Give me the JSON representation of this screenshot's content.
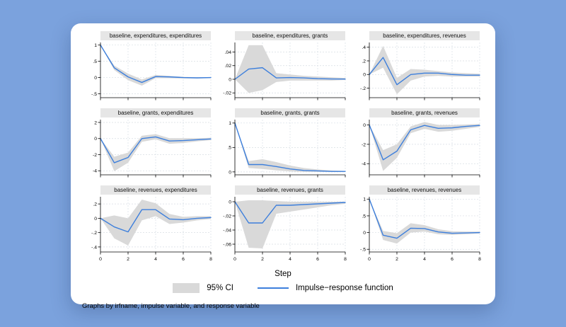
{
  "colors": {
    "page_bg": "#7ba2dd",
    "card_bg": "#ffffff",
    "line": "#3d7fdc",
    "ci": "#d9d9d9",
    "grid": "#d7dee4",
    "title_bg": "#e6e6e6",
    "axis": "#000000"
  },
  "figure": {
    "xlabel": "Step",
    "note": "Graphs by irfname, impulse variable, and response variable",
    "legend": {
      "ci_label": "95% CI",
      "irf_label": "Impulse−response function"
    }
  },
  "chart_data": {
    "type": "line",
    "layout": "3x3 small multiples, Stata IRF graph, CI band + line per panel",
    "x": [
      0,
      1,
      2,
      3,
      4,
      5,
      6,
      7,
      8
    ],
    "xticks": [
      0,
      2,
      4,
      6,
      8
    ],
    "xlabel": "Step",
    "legend_position": "bottom-center",
    "grid": true,
    "subplots": [
      {
        "title": "baseline, expenditures, expenditures",
        "ytick_values": [
          1,
          0.5,
          0,
          -0.5
        ],
        "ytick_labels": [
          "1",
          ".5",
          "0",
          "-.5"
        ],
        "ylim": [
          -0.62,
          1.08
        ],
        "show_x_labels": false,
        "irf": [
          1,
          0.3,
          0.02,
          -0.15,
          0.03,
          0.02,
          0.0,
          -0.01,
          0.0
        ],
        "ci_upper": [
          1,
          0.37,
          0.12,
          -0.06,
          0.08,
          0.05,
          0.02,
          0.01,
          0.01
        ],
        "ci_lower": [
          1,
          0.23,
          -0.08,
          -0.25,
          -0.02,
          -0.02,
          -0.03,
          -0.03,
          -0.02
        ]
      },
      {
        "title": "baseline, expenditures, grants",
        "ytick_values": [
          0.04,
          0.02,
          0,
          -0.02
        ],
        "ytick_labels": [
          ".04",
          ".02",
          "0",
          "-.02"
        ],
        "ylim": [
          -0.027,
          0.054
        ],
        "show_x_labels": false,
        "irf": [
          0,
          0.015,
          0.017,
          0.002,
          0.0025,
          0.002,
          0.001,
          0.0005,
          0.0003
        ],
        "ci_upper": [
          0,
          0.05,
          0.05,
          0.009,
          0.007,
          0.005,
          0.004,
          0.003,
          0.002
        ],
        "ci_lower": [
          0,
          -0.02,
          -0.016,
          -0.004,
          -0.002,
          -0.002,
          -0.002,
          -0.002,
          -0.001
        ]
      },
      {
        "title": "baseline, expenditures, revenues",
        "ytick_values": [
          0.4,
          0.2,
          0,
          -0.2
        ],
        "ytick_labels": [
          ".4",
          ".2",
          "0",
          "-.2"
        ],
        "ylim": [
          -0.34,
          0.47
        ],
        "show_x_labels": false,
        "irf": [
          0,
          0.25,
          -0.15,
          0.0,
          0.02,
          0.02,
          0.0,
          -0.01,
          -0.01
        ],
        "ci_upper": [
          0,
          0.42,
          -0.05,
          0.08,
          0.07,
          0.05,
          0.03,
          0.02,
          0.01
        ],
        "ci_lower": [
          0,
          0.1,
          -0.29,
          -0.09,
          -0.03,
          -0.02,
          -0.03,
          -0.03,
          -0.03
        ]
      },
      {
        "title": "baseline, grants, expenditures",
        "ytick_values": [
          2,
          0,
          -2,
          -4
        ],
        "ytick_labels": [
          "2",
          "0",
          "-2",
          "-4"
        ],
        "ylim": [
          -4.5,
          2.35
        ],
        "show_x_labels": false,
        "irf": [
          0,
          -3.0,
          -2.35,
          0.0,
          0.2,
          -0.3,
          -0.25,
          -0.15,
          -0.05
        ],
        "ci_upper": [
          0,
          -2.25,
          -1.75,
          0.35,
          0.55,
          0.05,
          0.05,
          0.05,
          0.1
        ],
        "ci_lower": [
          0,
          -4.05,
          -3.0,
          -0.4,
          -0.1,
          -0.65,
          -0.55,
          -0.35,
          -0.2
        ]
      },
      {
        "title": "baseline, grants, grants",
        "ytick_values": [
          1,
          0.5,
          0
        ],
        "ytick_labels": [
          "1",
          ".5",
          "0"
        ],
        "ylim": [
          -0.06,
          1.07
        ],
        "show_x_labels": false,
        "irf": [
          1,
          0.15,
          0.15,
          0.11,
          0.06,
          0.03,
          0.02,
          0.01,
          0.01
        ],
        "ci_upper": [
          1,
          0.22,
          0.26,
          0.2,
          0.13,
          0.08,
          0.05,
          0.03,
          0.02
        ],
        "ci_lower": [
          1,
          0.08,
          0.06,
          0.03,
          0.01,
          0.0,
          0.0,
          0.0,
          0.0
        ]
      },
      {
        "title": "baseline, grants, revenues",
        "ytick_values": [
          0,
          -2,
          -4
        ],
        "ytick_labels": [
          "0",
          "-2",
          "-4"
        ],
        "ylim": [
          -5.15,
          0.55
        ],
        "show_x_labels": false,
        "irf": [
          0,
          -3.6,
          -2.7,
          -0.5,
          -0.05,
          -0.35,
          -0.3,
          -0.15,
          -0.05
        ],
        "ci_upper": [
          0,
          -2.6,
          -2.0,
          -0.15,
          0.3,
          0.0,
          0.0,
          0.05,
          0.1
        ],
        "ci_lower": [
          0,
          -4.75,
          -3.4,
          -0.85,
          -0.4,
          -0.7,
          -0.6,
          -0.4,
          -0.2
        ]
      },
      {
        "title": "baseline, revenues, expenditures",
        "ytick_values": [
          0.2,
          0,
          -0.2,
          -0.4
        ],
        "ytick_labels": [
          ".2",
          "0",
          "-.2",
          "-.4"
        ],
        "ylim": [
          -0.47,
          0.3
        ],
        "show_x_labels": true,
        "irf": [
          0,
          -0.12,
          -0.19,
          0.12,
          0.12,
          -0.01,
          -0.02,
          0.0,
          0.01
        ],
        "ci_upper": [
          0,
          0.04,
          0.0,
          0.26,
          0.21,
          0.06,
          0.02,
          0.03,
          0.03
        ],
        "ci_lower": [
          0,
          -0.28,
          -0.38,
          -0.03,
          0.03,
          -0.08,
          -0.06,
          -0.03,
          -0.01
        ]
      },
      {
        "title": "baseline, revenues, grants",
        "ytick_values": [
          0,
          -0.02,
          -0.04,
          -0.06
        ],
        "ytick_labels": [
          "0",
          "-.02",
          "-.04",
          "-.06"
        ],
        "ylim": [
          -0.071,
          0.007
        ],
        "show_x_labels": true,
        "irf": [
          0,
          -0.03,
          -0.03,
          -0.005,
          -0.005,
          -0.004,
          -0.003,
          -0.002,
          -0.001
        ],
        "ci_upper": [
          0,
          0.002,
          0.002,
          0.001,
          0.0,
          0.0,
          0.0,
          0.0,
          0.0
        ],
        "ci_lower": [
          0,
          -0.065,
          -0.066,
          -0.017,
          -0.014,
          -0.011,
          -0.008,
          -0.005,
          -0.003
        ]
      },
      {
        "title": "baseline, revenues, revenues",
        "ytick_values": [
          1,
          0.5,
          0,
          -0.5
        ],
        "ytick_labels": [
          "1",
          ".5",
          "0",
          "-.5"
        ],
        "ylim": [
          -0.58,
          1.07
        ],
        "show_x_labels": true,
        "irf": [
          1,
          -0.08,
          -0.17,
          0.13,
          0.12,
          0.02,
          -0.02,
          -0.01,
          0.0
        ],
        "ci_upper": [
          1,
          0.05,
          -0.02,
          0.28,
          0.22,
          0.1,
          0.04,
          0.03,
          0.03
        ],
        "ci_lower": [
          1,
          -0.22,
          -0.33,
          0.0,
          0.03,
          -0.05,
          -0.07,
          -0.05,
          -0.03
        ]
      }
    ]
  }
}
